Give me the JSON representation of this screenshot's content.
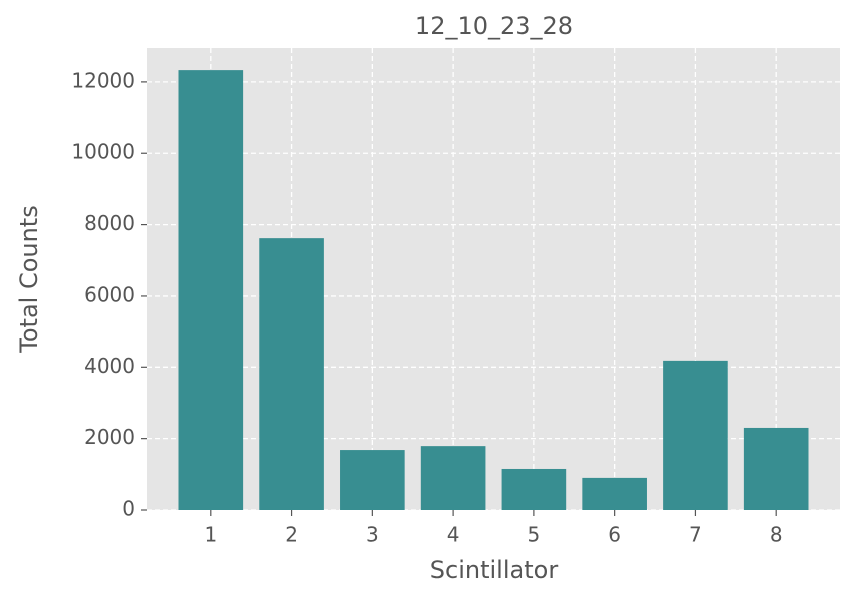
{
  "chart_data": {
    "type": "bar",
    "title": "12_10_23_28",
    "x_label": "Scintillator",
    "y_label": "Total Counts",
    "categories": [
      "1",
      "2",
      "3",
      "4",
      "5",
      "6",
      "7",
      "8"
    ],
    "values": [
      12330,
      7620,
      1680,
      1790,
      1150,
      900,
      4180,
      2300
    ],
    "color": "#388e91",
    "ylim": [
      0,
      12950
    ],
    "yticks": [
      0,
      2000,
      4000,
      6000,
      8000,
      10000,
      12000
    ],
    "grid": true
  }
}
